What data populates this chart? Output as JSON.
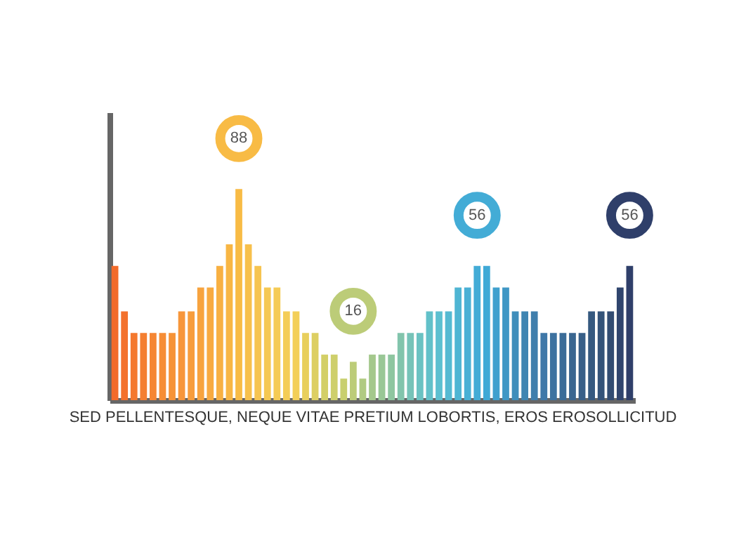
{
  "chart_data": {
    "type": "bar",
    "ylim": [
      0,
      120
    ],
    "grid": false,
    "legend": false,
    "xlabel": "SED PELLENTESQUE, NEQUE VITAE PRETIUM LOBORTIS, EROS EROSOLLICITUD",
    "categories": [
      null,
      null,
      null,
      null,
      null,
      null,
      null,
      null,
      null,
      null,
      null,
      null,
      null,
      null,
      null,
      null,
      null,
      null,
      null,
      null,
      null,
      null,
      null,
      null,
      null,
      null,
      null,
      null,
      null,
      null,
      null,
      null,
      null,
      null,
      null,
      null,
      null,
      null,
      null,
      null,
      null,
      null,
      null,
      null,
      null,
      null,
      null,
      null,
      null,
      null,
      null,
      null,
      null,
      null,
      null
    ],
    "values": [
      56,
      37,
      28,
      28,
      28,
      28,
      28,
      37,
      37,
      47,
      47,
      56,
      65,
      88,
      65,
      56,
      47,
      47,
      37,
      37,
      28,
      28,
      19,
      19,
      9,
      16,
      9,
      19,
      19,
      19,
      28,
      28,
      28,
      37,
      37,
      37,
      47,
      47,
      56,
      56,
      47,
      47,
      37,
      37,
      37,
      28,
      28,
      28,
      28,
      28,
      37,
      37,
      37,
      47,
      56
    ],
    "value_labels": [
      null,
      null,
      null,
      null,
      null,
      null,
      null,
      null,
      null,
      null,
      null,
      null,
      null,
      "88",
      null,
      null,
      null,
      null,
      null,
      null,
      null,
      null,
      null,
      null,
      null,
      "16",
      null,
      null,
      null,
      null,
      null,
      null,
      null,
      null,
      null,
      null,
      null,
      null,
      "56",
      null,
      null,
      null,
      null,
      null,
      null,
      null,
      null,
      null,
      null,
      null,
      null,
      null,
      null,
      null,
      "56"
    ],
    "colors": [
      "#f26b2a",
      "#f3712c",
      "#f4782e",
      "#f47f31",
      "#f58633",
      "#f68d35",
      "#f69337",
      "#f7963a",
      "#f79d3c",
      "#f7a33e",
      "#f8aa40",
      "#f8b042",
      "#f8b644",
      "#f8bb45",
      "#f7c04b",
      "#f6c450",
      "#f5c853",
      "#f5cb55",
      "#f4cd57",
      "#f3cf58",
      "#e8cf5c",
      "#ddcf62",
      "#d3cf67",
      "#cecf6b",
      "#c8cf6e",
      "#bccc78",
      "#b0ca82",
      "#a4c88c",
      "#99c796",
      "#8ec6a0",
      "#82c4ac",
      "#76c3b8",
      "#6ac2c2",
      "#62c1c9",
      "#5cc0d0",
      "#55bad2",
      "#4fb5d3",
      "#49b0d5",
      "#43acd6",
      "#3fa9d6",
      "#3fa0ce",
      "#3f97c5",
      "#3f8ebb",
      "#3f85b2",
      "#3f7eac",
      "#3f78a8",
      "#3d72a0",
      "#3b6c98",
      "#3a6690",
      "#385f88",
      "#365980",
      "#345379",
      "#324c72",
      "#30456e",
      "#2f3f6a"
    ]
  }
}
